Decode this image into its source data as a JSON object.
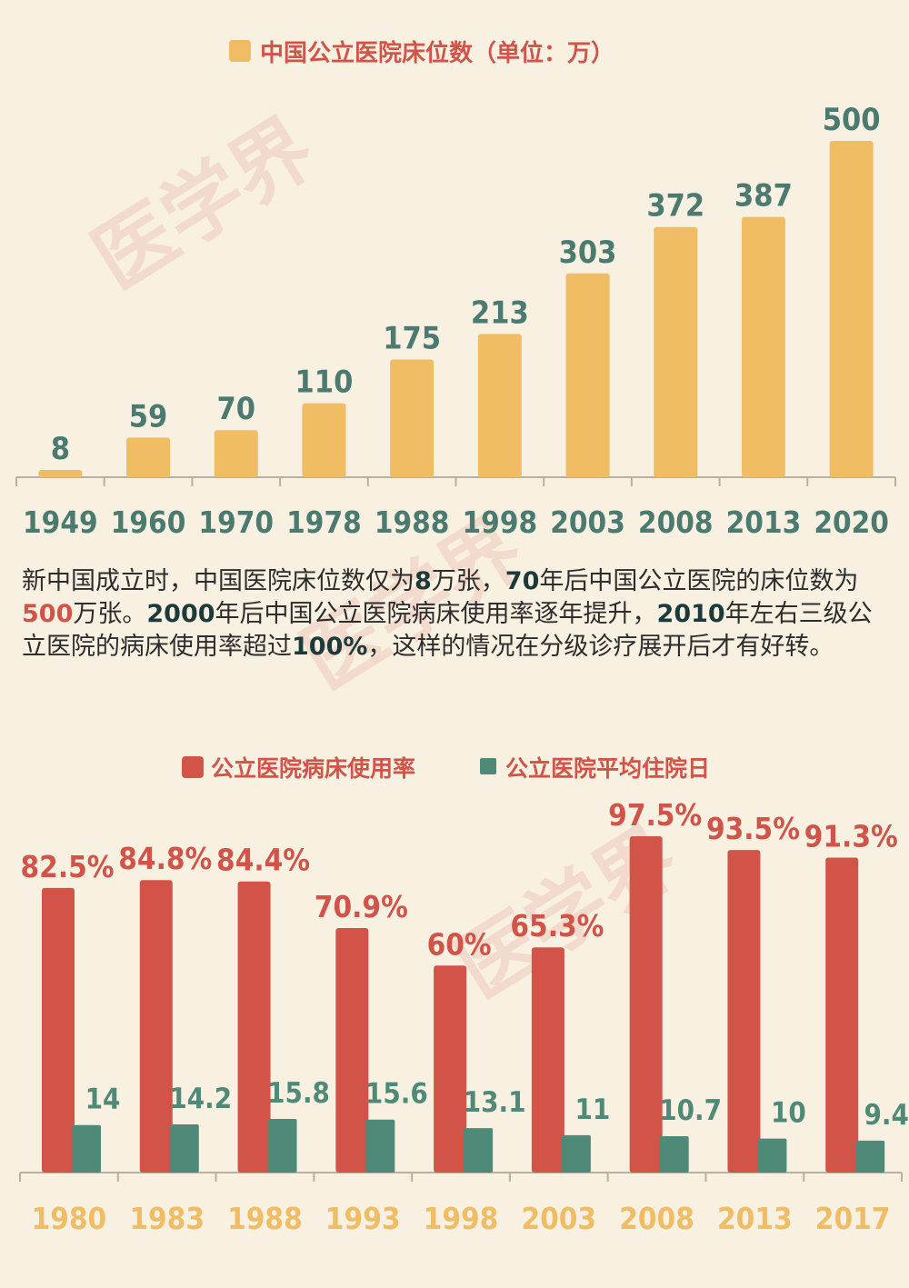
{
  "chart_data": [
    {
      "type": "bar",
      "title": "中国公立医院床位数（单位：万）",
      "categories": [
        "1949",
        "1960",
        "1970",
        "1978",
        "1988",
        "1998",
        "2003",
        "2008",
        "2013",
        "2020"
      ],
      "series": [
        {
          "name": "中国公立医院床位数（单位：万）",
          "values": [
            8,
            59,
            70,
            110,
            175,
            213,
            303,
            372,
            387,
            500
          ]
        }
      ],
      "ylim": [
        0,
        500
      ],
      "grid": false,
      "legend": "top-center"
    },
    {
      "type": "bar",
      "title": "",
      "categories": [
        "1980",
        "1983",
        "1988",
        "1993",
        "1998",
        "2003",
        "2008",
        "2013",
        "2017"
      ],
      "series": [
        {
          "name": "公立医院病床使用率",
          "values": [
            82.5,
            84.8,
            84.4,
            70.9,
            60,
            65.3,
            97.5,
            93.5,
            91.3
          ],
          "labels": [
            "82.5%",
            "84.8%",
            "84.4%",
            "70.9%",
            "60%",
            "65.3%",
            "97.5%",
            "93.5%",
            "91.3%"
          ]
        },
        {
          "name": "公立医院平均住院日",
          "values": [
            14,
            14.2,
            15.8,
            15.6,
            13.1,
            11,
            10.7,
            10,
            9.4
          ],
          "labels": [
            "14",
            "14.2",
            "15.8",
            "15.6",
            "13.1",
            "11",
            "10.7",
            "10",
            "9.4"
          ]
        }
      ],
      "grid": false,
      "legend": "top-center"
    }
  ],
  "paragraph": [
    {
      "t": "新中国成立时，中国医院床位数仅为"
    },
    {
      "t": "8",
      "s": "b"
    },
    {
      "t": "万张，"
    },
    {
      "t": "70",
      "s": "b"
    },
    {
      "t": "年后中国公立医院的床位数为"
    },
    {
      "t": "500",
      "s": "hl"
    },
    {
      "t": "万张。"
    },
    {
      "t": "2000",
      "s": "b"
    },
    {
      "t": "年后中国公立医院病床使用率逐年提升，"
    },
    {
      "t": "2010",
      "s": "b"
    },
    {
      "t": "年左右三级公立医院的病床使用率超过"
    },
    {
      "t": "100%",
      "s": "b"
    },
    {
      "t": "，这样的情况在分级诊疗展开后才有好转。"
    }
  ],
  "watermark": "医学界",
  "colors": {
    "background": "#f8f1e2",
    "bed_bar": "#f0bd64",
    "bed_value_text": "#4a7a70",
    "bed_year_text": "#4a7a70",
    "occupancy_bar": "#d25448",
    "stay_bar": "#4f8a78",
    "bottom_year_text": "#f0bd64",
    "axis": "#b8b0a0"
  }
}
